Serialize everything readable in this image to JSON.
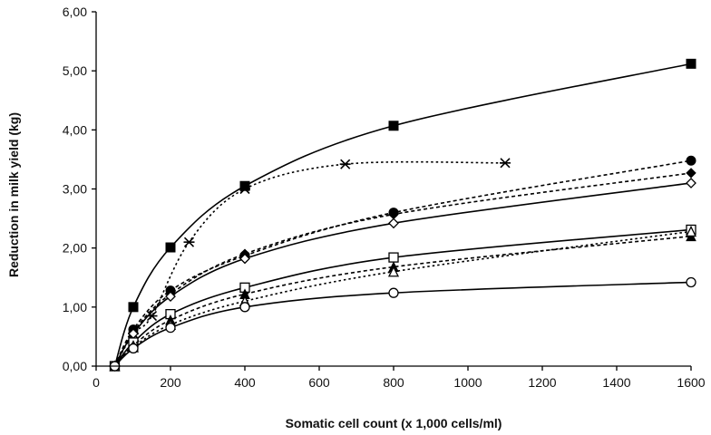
{
  "chart_data": {
    "type": "line",
    "title": "",
    "xlabel": "Somatic cell count (x 1,000 cells/ml)",
    "ylabel": "Reduction in milk yield (kg)",
    "xlim": [
      0,
      1600
    ],
    "ylim": [
      0,
      6
    ],
    "grid": false,
    "x_ticks": [
      0,
      200,
      400,
      600,
      800,
      1000,
      1200,
      1400,
      1600
    ],
    "x_tick_labels": [
      "0",
      "200",
      "400",
      "600",
      "800",
      "1000",
      "1200",
      "1400",
      "1600"
    ],
    "y_ticks": [
      0,
      1,
      2,
      3,
      4,
      5,
      6
    ],
    "y_tick_labels": [
      "0,00",
      "1,00",
      "2,00",
      "3,00",
      "4,00",
      "5,00",
      "6,00"
    ],
    "series": [
      {
        "marker": "square-filled",
        "line": "solid",
        "x": [
          50,
          100,
          200,
          400,
          800,
          1600
        ],
        "y": [
          0,
          1.0,
          2.01,
          3.05,
          4.07,
          5.12
        ]
      },
      {
        "marker": "star",
        "line": "dotted",
        "x": [
          50,
          100,
          150,
          250,
          400,
          670,
          1100
        ],
        "y": [
          0,
          0.55,
          0.85,
          2.1,
          3.0,
          3.42,
          3.44
        ]
      },
      {
        "marker": "circle-filled",
        "line": "dashed",
        "x": [
          50,
          100,
          200,
          400,
          800,
          1600
        ],
        "y": [
          0,
          0.62,
          1.28,
          1.87,
          2.6,
          3.48
        ]
      },
      {
        "marker": "diamond-filled",
        "line": "dashed",
        "x": [
          50,
          100,
          200,
          400,
          800,
          1600
        ],
        "y": [
          0,
          0.58,
          1.22,
          1.9,
          2.57,
          3.27
        ]
      },
      {
        "marker": "diamond-open",
        "line": "solid",
        "x": [
          50,
          100,
          200,
          400,
          800,
          1600
        ],
        "y": [
          0,
          0.55,
          1.18,
          1.82,
          2.42,
          3.1
        ]
      },
      {
        "marker": "square-open",
        "line": "solid",
        "x": [
          50,
          100,
          200,
          400,
          800,
          1600
        ],
        "y": [
          0,
          0.4,
          0.88,
          1.33,
          1.84,
          2.31
        ]
      },
      {
        "marker": "triangle-filled",
        "line": "dashed",
        "x": [
          50,
          100,
          200,
          400,
          800,
          1600
        ],
        "y": [
          0,
          0.35,
          0.78,
          1.22,
          1.68,
          2.2
        ]
      },
      {
        "marker": "triangle-open",
        "line": "dotted",
        "x": [
          50,
          100,
          200,
          400,
          800,
          1600
        ],
        "y": [
          0,
          0.32,
          0.7,
          1.1,
          1.6,
          2.28
        ]
      },
      {
        "marker": "circle-open",
        "line": "solid",
        "x": [
          50,
          100,
          200,
          400,
          800,
          1600
        ],
        "y": [
          0,
          0.3,
          0.65,
          1.0,
          1.24,
          1.42
        ]
      }
    ]
  }
}
